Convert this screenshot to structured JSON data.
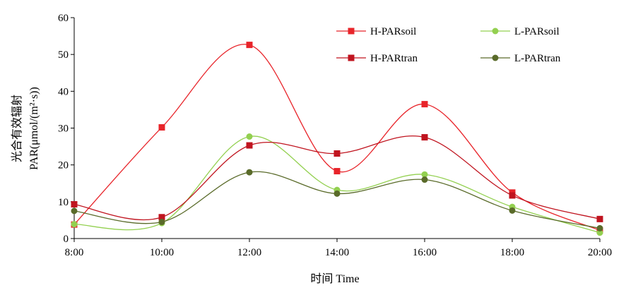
{
  "chart_data": {
    "type": "line",
    "smooth": true,
    "title": "",
    "xlabel": "时间 Time",
    "ylabel_line1": "光合有效辐射",
    "ylabel_line2": "PAR(μmol/(m²·s))",
    "categories": [
      "8:00",
      "10:00",
      "12:00",
      "14:00",
      "16:00",
      "18:00",
      "20:00"
    ],
    "ylim": [
      0,
      60
    ],
    "yticks": [
      0,
      10,
      20,
      30,
      40,
      50,
      60
    ],
    "grid": false,
    "legend_placement": "top-right",
    "series": [
      {
        "name": "H-PARsoil",
        "values": [
          3.8,
          30.2,
          52.6,
          18.3,
          36.5,
          12.5,
          2.2
        ],
        "color": "#e8242a",
        "marker": "square"
      },
      {
        "name": "L-PARsoil",
        "values": [
          3.9,
          4.2,
          27.7,
          13.2,
          17.4,
          8.6,
          1.6
        ],
        "color": "#93d050",
        "marker": "circle"
      },
      {
        "name": "H-PARtran",
        "values": [
          9.3,
          5.8,
          25.3,
          23.1,
          27.5,
          11.7,
          5.3
        ],
        "color": "#c0141f",
        "marker": "square"
      },
      {
        "name": "L-PARtran",
        "values": [
          7.5,
          4.5,
          18.0,
          12.2,
          16.0,
          7.6,
          2.8
        ],
        "color": "#5a6b2a",
        "marker": "circle"
      }
    ]
  }
}
